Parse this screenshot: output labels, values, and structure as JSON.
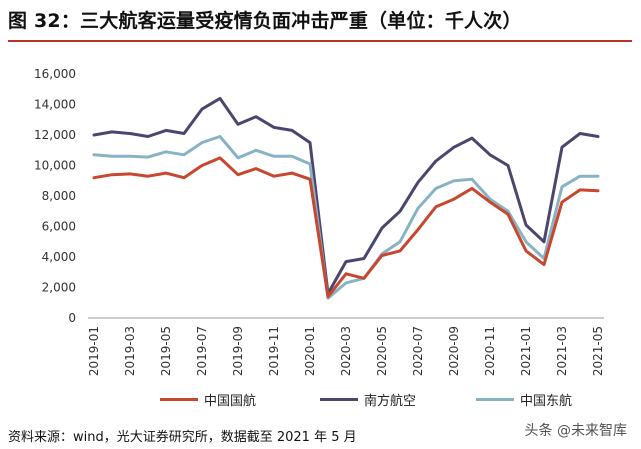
{
  "title": "图 32：三大航客运量受疫情负面冲击严重（单位：千人次）",
  "source": "资料来源：wind，光大证券研究所，数据截至 2021 年 5 月",
  "watermark": "头条 @未来智库",
  "colors": {
    "title_rule": "#b5352a",
    "china_southern": "#4a4670",
    "air_china": "#c8472e",
    "china_eastern": "#87b3c5"
  },
  "chart_data": {
    "type": "line",
    "y_ticks": [
      "16,000",
      "14,000",
      "12,000",
      "10,000",
      "8,000",
      "6,000",
      "4,000",
      "2,000",
      "0"
    ],
    "ylim": [
      0,
      16000
    ],
    "x_tick_labels": [
      "2019-01",
      "2019-03",
      "2019-05",
      "2019-07",
      "2019-09",
      "2019-11",
      "2020-01",
      "2020-03",
      "2020-05",
      "2020-07",
      "2020-09",
      "2020-11",
      "2021-01",
      "2021-03",
      "2021-05"
    ],
    "x": [
      "2019-01",
      "2019-02",
      "2019-03",
      "2019-04",
      "2019-05",
      "2019-06",
      "2019-07",
      "2019-08",
      "2019-09",
      "2019-10",
      "2019-11",
      "2019-12",
      "2020-01",
      "2020-02",
      "2020-03",
      "2020-04",
      "2020-05",
      "2020-06",
      "2020-07",
      "2020-08",
      "2020-09",
      "2020-10",
      "2020-11",
      "2020-12",
      "2021-01",
      "2021-02",
      "2021-03",
      "2021-04",
      "2021-05"
    ],
    "series": [
      {
        "name": "中国国航",
        "color": "#c8472e",
        "values": [
          9200,
          9400,
          9450,
          9300,
          9500,
          9200,
          10000,
          10500,
          9400,
          9800,
          9300,
          9500,
          9100,
          1400,
          2900,
          2600,
          4100,
          4400,
          5800,
          7300,
          7800,
          8500,
          7600,
          6800,
          4400,
          3500,
          7600,
          8400,
          8350
        ]
      },
      {
        "name": "南方航空",
        "color": "#4a4670",
        "values": [
          12000,
          12200,
          12100,
          11900,
          12300,
          12100,
          13700,
          14400,
          12700,
          13200,
          12500,
          12300,
          11500,
          1600,
          3700,
          3900,
          5900,
          7000,
          8900,
          10300,
          11200,
          11800,
          10700,
          10000,
          6100,
          5000,
          11200,
          12100,
          11900
        ]
      },
      {
        "name": "中国东航",
        "color": "#87b3c5",
        "values": [
          10700,
          10600,
          10600,
          10550,
          10900,
          10700,
          11500,
          11900,
          10500,
          11000,
          10600,
          10600,
          10100,
          1300,
          2300,
          2600,
          4200,
          5000,
          7200,
          8500,
          9000,
          9100,
          7800,
          7000,
          5000,
          3900,
          8600,
          9300,
          9300
        ]
      }
    ]
  }
}
